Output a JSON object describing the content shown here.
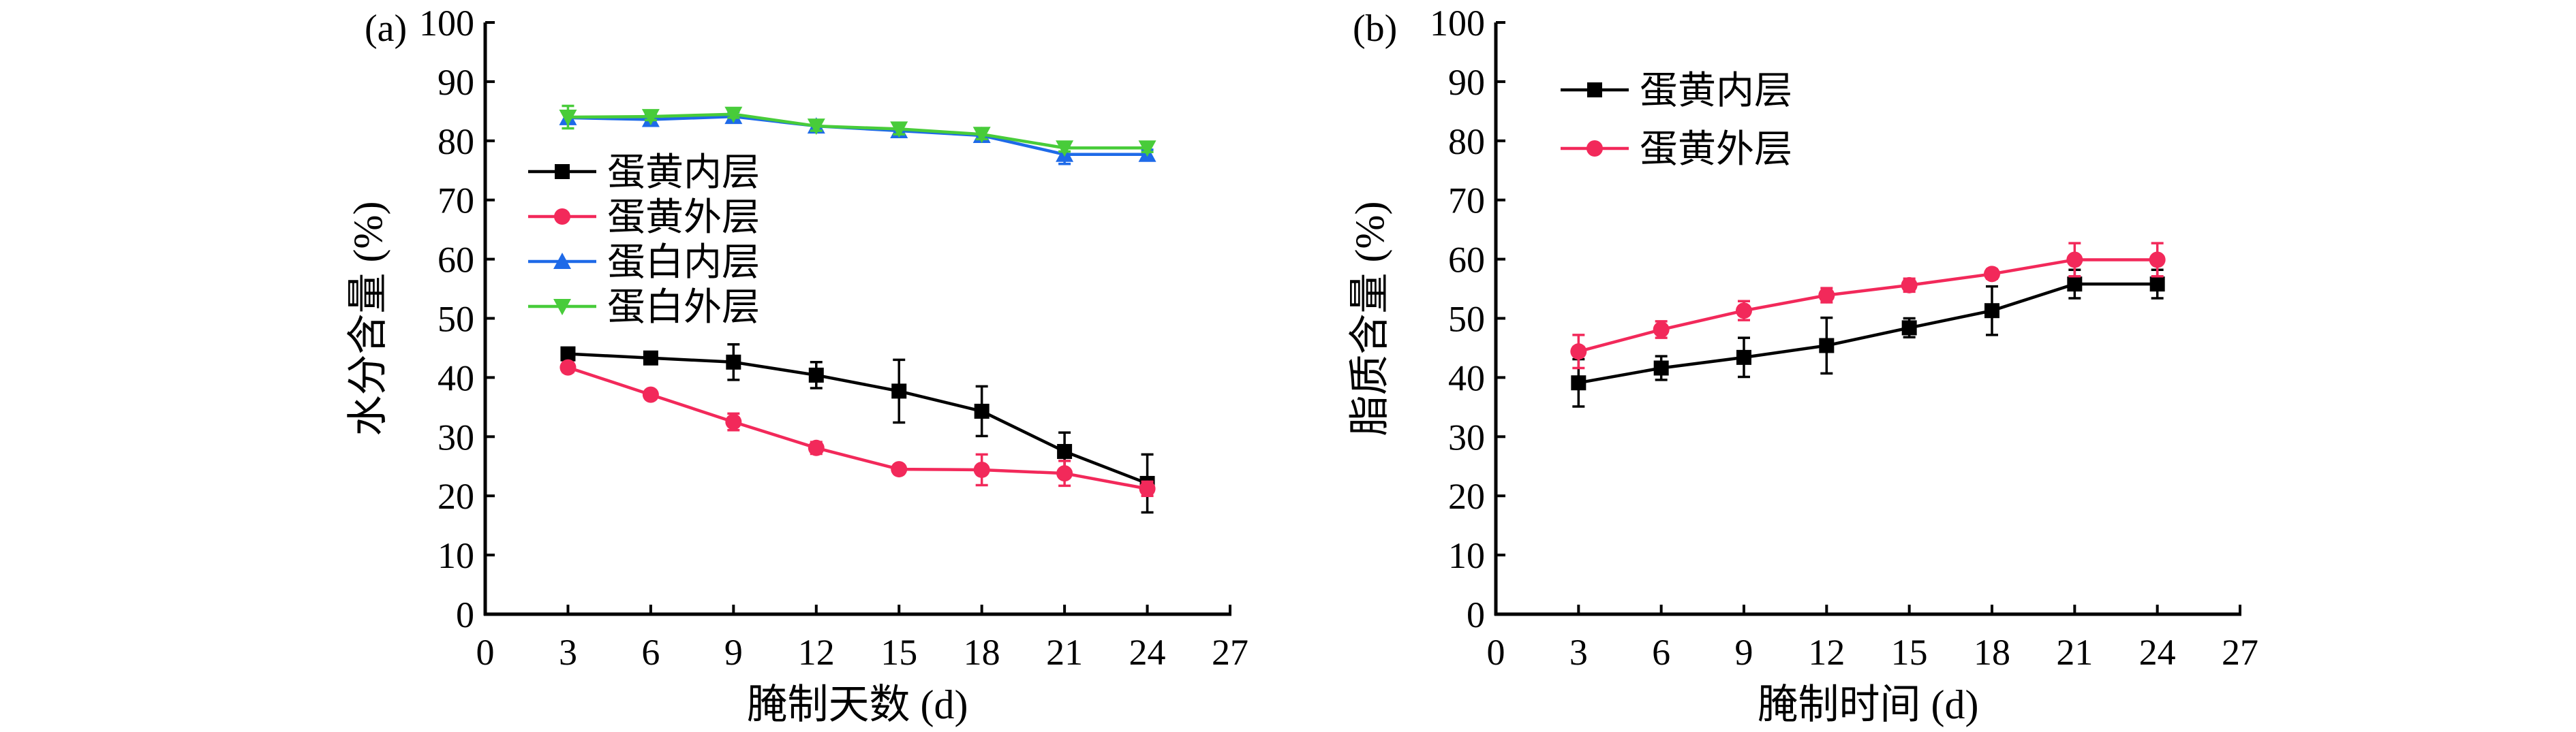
{
  "chart_data": [
    {
      "type": "line",
      "panel_label": "(a)",
      "title": "",
      "xlabel": "腌制天数 (d)",
      "ylabel": "水分含量 (%)",
      "xlim": [
        0,
        27
      ],
      "ylim": [
        0,
        100
      ],
      "xticks": [
        0,
        3,
        6,
        9,
        12,
        15,
        18,
        21,
        24,
        27
      ],
      "yticks": [
        0,
        10,
        20,
        30,
        40,
        50,
        60,
        70,
        80,
        90,
        100
      ],
      "grid": false,
      "legend_position": "center-left",
      "x": [
        3,
        6,
        9,
        12,
        15,
        18,
        21,
        24
      ],
      "series": [
        {
          "name": "蛋黄内层",
          "color": "#000000",
          "marker": "square",
          "values": [
            44.0,
            43.3,
            42.6,
            40.4,
            37.7,
            34.3,
            27.5,
            22.1
          ],
          "errors": [
            0.6,
            0.7,
            3.0,
            2.2,
            5.3,
            4.2,
            3.2,
            4.9
          ]
        },
        {
          "name": "蛋黄外层",
          "color": "#F2295A",
          "marker": "circle",
          "values": [
            41.7,
            37.1,
            32.5,
            28.1,
            24.5,
            24.4,
            23.8,
            21.2
          ],
          "errors": [
            0.8,
            0.5,
            1.4,
            1.0,
            0.7,
            2.6,
            2.1,
            1.2
          ]
        },
        {
          "name": "蛋白内层",
          "color": "#1E6AE8",
          "marker": "triangle-up",
          "values": [
            83.9,
            83.6,
            84.1,
            82.5,
            81.7,
            80.9,
            77.7,
            77.7
          ],
          "errors": [
            1.0,
            0.9,
            0.8,
            0.8,
            0.9,
            0.9,
            1.6,
            0.8
          ]
        },
        {
          "name": "蛋白外层",
          "color": "#48CC3A",
          "marker": "triangle-down",
          "values": [
            84.0,
            84.1,
            84.5,
            82.5,
            82.0,
            81.1,
            78.8,
            78.8
          ],
          "errors": [
            1.9,
            0.6,
            0.6,
            0.8,
            0.9,
            0.8,
            0.6,
            0.7
          ]
        }
      ]
    },
    {
      "type": "line",
      "panel_label": "(b)",
      "title": "",
      "xlabel": "腌制时间 (d)",
      "ylabel": "脂质含量 (%)",
      "xlim": [
        0,
        27
      ],
      "ylim": [
        0,
        100
      ],
      "xticks": [
        0,
        3,
        6,
        9,
        12,
        15,
        18,
        21,
        24,
        27
      ],
      "yticks": [
        0,
        10,
        20,
        30,
        40,
        50,
        60,
        70,
        80,
        90,
        100
      ],
      "grid": false,
      "legend_position": "top-left",
      "x": [
        3,
        6,
        9,
        12,
        15,
        18,
        21,
        24
      ],
      "series": [
        {
          "name": "蛋黄内层",
          "color": "#000000",
          "marker": "square",
          "values": [
            39.1,
            41.6,
            43.4,
            45.4,
            48.4,
            51.3,
            55.8,
            55.8
          ],
          "errors": [
            4.0,
            2.0,
            3.3,
            4.7,
            1.6,
            4.1,
            2.4,
            2.4
          ]
        },
        {
          "name": "蛋黄外层",
          "color": "#F2295A",
          "marker": "circle",
          "values": [
            44.4,
            48.1,
            51.3,
            53.9,
            55.6,
            57.5,
            59.9,
            59.9
          ],
          "errors": [
            2.8,
            1.4,
            1.6,
            1.2,
            1.1,
            0.8,
            2.8,
            2.8
          ]
        }
      ]
    }
  ]
}
